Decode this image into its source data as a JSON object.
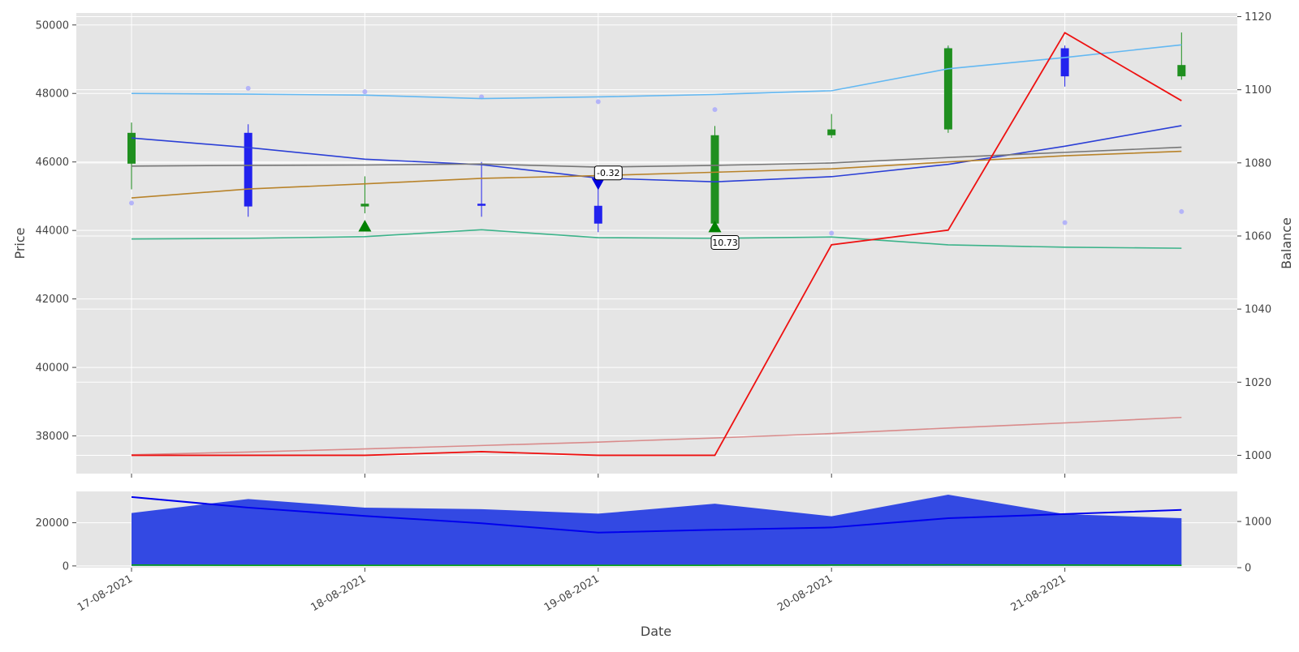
{
  "chart_data": [
    {
      "type": "line",
      "panel": "price",
      "xlabel": "Date",
      "ylabel": "Price",
      "ylabel_right": "Balance",
      "x": [
        "17-08-2021 00:00",
        "17-08-2021 12:00",
        "18-08-2021 00:00",
        "18-08-2021 12:00",
        "19-08-2021 00:00",
        "19-08-2021 12:00",
        "20-08-2021 00:00",
        "20-08-2021 12:00",
        "21-08-2021 00:00",
        "21-08-2021 12:00"
      ],
      "x_tick_labels": [
        "17-08-2021",
        "18-08-2021",
        "19-08-2021",
        "20-08-2021",
        "21-08-2021"
      ],
      "ylim": [
        36900,
        50350
      ],
      "y_ticks": [
        38000,
        40000,
        42000,
        44000,
        46000,
        48000,
        50000
      ],
      "ylim_right": [
        995,
        1121
      ],
      "y_ticks_right": [
        1000,
        1020,
        1040,
        1060,
        1080,
        1100,
        1120
      ],
      "grid": true,
      "candles": [
        {
          "open": 45950,
          "close": 46850,
          "high": 47150,
          "low": 45200
        },
        {
          "open": 46850,
          "close": 44700,
          "high": 47100,
          "low": 44400
        },
        {
          "open": 44700,
          "close": 44780,
          "high": 45580,
          "low": 44500
        },
        {
          "open": 44780,
          "close": 44720,
          "high": 46000,
          "low": 44400
        },
        {
          "open": 44720,
          "close": 44200,
          "high": 45350,
          "low": 43950
        },
        {
          "open": 44200,
          "close": 46780,
          "high": 47050,
          "low": 44100
        },
        {
          "open": 46780,
          "close": 46950,
          "high": 47400,
          "low": 46700
        },
        {
          "open": 46950,
          "close": 49320,
          "high": 49400,
          "low": 46850
        },
        {
          "open": 49320,
          "close": 48500,
          "high": 49400,
          "low": 48200
        },
        {
          "open": 48500,
          "close": 48830,
          "high": 49780,
          "low": 48400
        }
      ],
      "candle_colors": {
        "up": "#1f8f1f",
        "down": "#2222ee"
      },
      "series": [
        {
          "axis": "left",
          "color": "#63b8f2",
          "values": [
            48000,
            47980,
            47950,
            47850,
            47900,
            47970,
            48080,
            48720,
            49050,
            49420
          ]
        },
        {
          "axis": "left",
          "color": "#2b3fd6",
          "values": [
            46700,
            46420,
            46080,
            45920,
            45530,
            45420,
            45570,
            45930,
            46460,
            47060
          ]
        },
        {
          "axis": "left",
          "color": "#777777",
          "values": [
            45880,
            45900,
            45910,
            45940,
            45850,
            45900,
            45970,
            46130,
            46280,
            46430
          ]
        },
        {
          "axis": "left",
          "color": "#b8832a",
          "values": [
            44950,
            45210,
            45360,
            45520,
            45600,
            45700,
            45800,
            46000,
            46180,
            46310
          ]
        },
        {
          "axis": "left",
          "color": "#3cb38a",
          "values": [
            43750,
            43770,
            43820,
            44020,
            43790,
            43770,
            43810,
            43580,
            43510,
            43480
          ]
        },
        {
          "axis": "left",
          "color": "#d98b8b",
          "values": [
            37450,
            37530,
            37620,
            37720,
            37820,
            37940,
            38070,
            38230,
            38380,
            38540
          ]
        },
        {
          "axis": "right",
          "color": "#ee1111",
          "values": [
            1000,
            1000,
            1000,
            1001,
            1000,
            1000,
            1057.6,
            1061.6,
            1115.6,
            1097
          ]
        }
      ],
      "dots": {
        "color": "#b4b4f8",
        "values": [
          44800,
          48150,
          48050,
          47900,
          47760,
          47530,
          43920,
          49280,
          44230,
          44550
        ]
      },
      "markers": [
        {
          "x_index": 2,
          "y": 44120,
          "shape": "triangle-up",
          "color": "#008000"
        },
        {
          "x_index": 4,
          "y": 45370,
          "shape": "triangle-down",
          "color": "#0000dd"
        },
        {
          "x_index": 5,
          "y": 44100,
          "shape": "triangle-up",
          "color": "#008000"
        }
      ],
      "annotations": [
        {
          "text": "-0.32",
          "x_index": 4.08,
          "y": 45680
        },
        {
          "text": "10.73",
          "x_index": 5.08,
          "y": 43650
        }
      ]
    },
    {
      "type": "area",
      "panel": "volume",
      "x_index": [
        0,
        1,
        2,
        3,
        4,
        5,
        6,
        7,
        8,
        9
      ],
      "ylim": [
        -800,
        34500
      ],
      "y_ticks": [
        0,
        20000
      ],
      "ylim_right": [
        0,
        1650
      ],
      "y_ticks_right": [
        0,
        1000
      ],
      "grid": true,
      "area": {
        "color": "#3349e3",
        "values": [
          24500,
          31000,
          27000,
          26300,
          24200,
          28800,
          23000,
          33000,
          24000,
          22100
        ]
      },
      "line": {
        "axis": "right",
        "color": "#0000ee",
        "values": [
          1530,
          1300,
          1120,
          960,
          760,
          820,
          870,
          1070,
          1160,
          1250
        ]
      },
      "baseline_line": {
        "color": "#00aa00",
        "values": [
          400,
          300,
          300,
          300,
          300,
          300,
          400,
          500,
          400,
          300
        ]
      }
    }
  ]
}
